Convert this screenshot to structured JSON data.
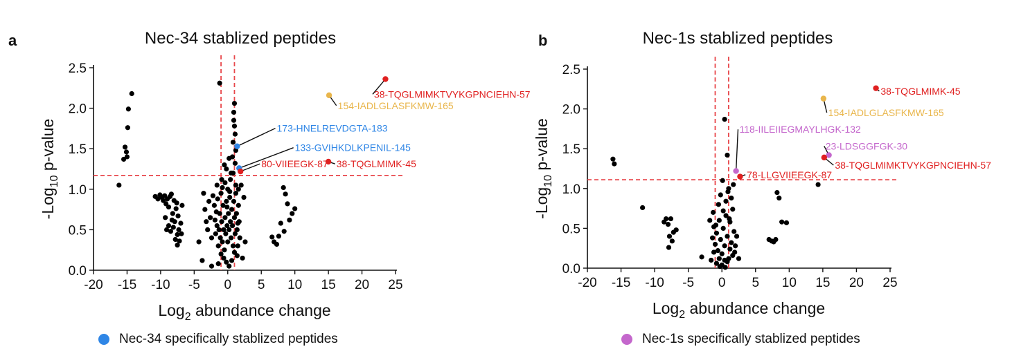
{
  "colors": {
    "point": "#000000",
    "threshold": "#e8474b",
    "red": "#e02020",
    "orange": "#e9b64c",
    "blue": "#2f86e6",
    "purple": "#c467cc"
  },
  "panels": [
    {
      "letter": "a",
      "legend_label": "Nec-34 specifically stablized peptides",
      "legend_color": "#2f86e6"
    },
    {
      "letter": "b",
      "legend_label": "Nec-1s specifically stablized peptides",
      "legend_color": "#c467cc"
    }
  ],
  "chart_data": [
    {
      "type": "scatter",
      "title": "Nec-34 stablized peptides",
      "xlabel": "Log2 abundance change",
      "ylabel": "-Log10 p-value",
      "xlim": [
        -20,
        25
      ],
      "ylim": [
        0,
        2.5
      ],
      "xticks": [
        "-20",
        "-15",
        "-10",
        "-5",
        "0",
        "5",
        "10",
        "15",
        "20",
        "25"
      ],
      "yticks": [
        "0.0",
        "0.5",
        "1.0",
        "1.5",
        "2.0",
        "2.5"
      ],
      "thresholds": {
        "x": [
          -1,
          1
        ],
        "y": 1.17
      },
      "points": [
        [
          -16.2,
          1.05
        ],
        [
          -15.5,
          1.37
        ],
        [
          -15.3,
          1.52
        ],
        [
          -15.1,
          1.46
        ],
        [
          -15.0,
          1.4
        ],
        [
          -14.8,
          1.99
        ],
        [
          -14.9,
          1.76
        ],
        [
          -14.3,
          2.18
        ],
        [
          -10.8,
          0.91
        ],
        [
          -10.4,
          0.88
        ],
        [
          -10.1,
          0.93
        ],
        [
          -9.8,
          0.9
        ],
        [
          -9.6,
          0.86
        ],
        [
          -9.4,
          0.92
        ],
        [
          -9.2,
          0.82
        ],
        [
          -9.0,
          0.88
        ],
        [
          -8.8,
          0.78
        ],
        [
          -8.6,
          0.91
        ],
        [
          -8.4,
          0.94
        ],
        [
          -8.2,
          0.7
        ],
        [
          -8.0,
          0.86
        ],
        [
          -7.9,
          0.6
        ],
        [
          -7.7,
          0.76
        ],
        [
          -7.6,
          0.83
        ],
        [
          -7.5,
          0.44
        ],
        [
          -7.4,
          0.67
        ],
        [
          -7.3,
          0.5
        ],
        [
          -7.2,
          0.36
        ],
        [
          -7.5,
          0.31
        ],
        [
          -7.0,
          0.58
        ],
        [
          -6.9,
          0.45
        ],
        [
          -6.8,
          0.8
        ],
        [
          -9.3,
          0.65
        ],
        [
          -9.1,
          0.5
        ],
        [
          -8.8,
          0.55
        ],
        [
          -8.5,
          0.48
        ],
        [
          -8.3,
          0.62
        ],
        [
          -8.1,
          0.53
        ],
        [
          -7.8,
          0.38
        ],
        [
          -4.3,
          0.35
        ],
        [
          -3.6,
          0.95
        ],
        [
          -3.4,
          0.75
        ],
        [
          -3.2,
          0.6
        ],
        [
          -3.0,
          0.5
        ],
        [
          -2.8,
          0.85
        ],
        [
          -2.6,
          0.65
        ],
        [
          -2.4,
          0.4
        ],
        [
          -2.2,
          0.92
        ],
        [
          -2.0,
          0.8
        ],
        [
          -1.9,
          0.62
        ],
        [
          -1.8,
          0.45
        ],
        [
          -1.7,
          0.72
        ],
        [
          -1.6,
          0.55
        ],
        [
          -1.5,
          0.88
        ],
        [
          -1.4,
          0.3
        ],
        [
          -1.3,
          0.5
        ],
        [
          -1.2,
          0.7
        ],
        [
          -1.1,
          0.4
        ],
        [
          -1.0,
          0.95
        ],
        [
          -0.9,
          0.6
        ],
        [
          -0.8,
          0.35
        ],
        [
          -0.7,
          0.8
        ],
        [
          -0.6,
          0.5
        ],
        [
          -0.5,
          0.25
        ],
        [
          -0.4,
          0.65
        ],
        [
          -0.3,
          0.45
        ],
        [
          -0.2,
          0.85
        ],
        [
          -0.1,
          0.55
        ],
        [
          0.0,
          0.35
        ],
        [
          0.1,
          0.7
        ],
        [
          0.2,
          0.5
        ],
        [
          0.3,
          0.9
        ],
        [
          0.4,
          0.6
        ],
        [
          0.5,
          0.4
        ],
        [
          0.6,
          0.75
        ],
        [
          0.7,
          0.55
        ],
        [
          0.8,
          0.3
        ],
        [
          0.9,
          0.85
        ],
        [
          1.0,
          0.65
        ],
        [
          1.1,
          0.45
        ],
        [
          1.2,
          0.95
        ],
        [
          1.3,
          0.7
        ],
        [
          1.4,
          0.5
        ],
        [
          1.5,
          0.3
        ],
        [
          1.6,
          0.8
        ],
        [
          1.7,
          0.6
        ],
        [
          1.8,
          0.4
        ],
        [
          -1.0,
          0.2
        ],
        [
          -0.6,
          0.15
        ],
        [
          -0.2,
          0.1
        ],
        [
          0.2,
          0.05
        ],
        [
          0.6,
          0.12
        ],
        [
          1.0,
          0.22
        ],
        [
          1.4,
          0.18
        ],
        [
          -1.4,
          0.08
        ],
        [
          -3.8,
          0.12
        ],
        [
          -2.4,
          0.05
        ],
        [
          2.2,
          0.15
        ],
        [
          2.6,
          0.35
        ],
        [
          2.4,
          0.9
        ],
        [
          2.0,
          1.05
        ],
        [
          -0.8,
          1.02
        ],
        [
          -0.4,
          1.08
        ],
        [
          0.0,
          1.0
        ],
        [
          0.4,
          1.12
        ],
        [
          0.8,
          1.2
        ],
        [
          1.2,
          1.05
        ],
        [
          1.6,
          1.0
        ],
        [
          -1.6,
          1.05
        ],
        [
          -0.5,
          1.3
        ],
        [
          -0.2,
          1.25
        ],
        [
          0.2,
          1.38
        ],
        [
          0.5,
          1.2
        ],
        [
          -1.2,
          2.31
        ],
        [
          0.9,
          1.85
        ],
        [
          1.0,
          1.78
        ],
        [
          1.1,
          1.68
        ],
        [
          1.0,
          2.06
        ],
        [
          0.9,
          1.95
        ],
        [
          0.8,
          1.58
        ],
        [
          1.2,
          1.48
        ],
        [
          0.7,
          1.4
        ],
        [
          1.1,
          1.32
        ],
        [
          -0.9,
          1.12
        ],
        [
          0.3,
          0.97
        ],
        [
          -0.1,
          0.78
        ],
        [
          1.5,
          0.58
        ],
        [
          6.6,
          0.41
        ],
        [
          6.9,
          0.35
        ],
        [
          7.3,
          0.32
        ],
        [
          7.6,
          0.42
        ],
        [
          7.9,
          0.58
        ],
        [
          8.3,
          1.02
        ],
        [
          8.6,
          0.94
        ],
        [
          8.9,
          0.82
        ],
        [
          9.2,
          0.62
        ],
        [
          9.6,
          0.7
        ],
        [
          10.0,
          0.76
        ],
        [
          8.4,
          0.48
        ]
      ],
      "highlights": [
        {
          "x": 23.5,
          "y": 2.36,
          "color": "red",
          "label": "38-TQGLMIMKTVYKGPNCIEHN-57",
          "lx": 21.8,
          "ly": 2.13,
          "anchor": "start"
        },
        {
          "x": 15.1,
          "y": 2.16,
          "color": "orange",
          "label": "154-IADLGLASFKMW-165",
          "lx": 16.4,
          "ly": 1.99,
          "anchor": "start"
        },
        {
          "x": 1.4,
          "y": 1.53,
          "color": "blue",
          "label": "173-HNELREVDGTA-183",
          "lx": 7.3,
          "ly": 1.71,
          "anchor": "start"
        },
        {
          "x": 1.7,
          "y": 1.26,
          "color": "blue",
          "label": "133-GVIHKDLKPENIL-145",
          "lx": 10.0,
          "ly": 1.47,
          "anchor": "start"
        },
        {
          "x": 1.9,
          "y": 1.22,
          "color": "red",
          "label": "80-VIIEEGK-87",
          "lx": 5.0,
          "ly": 1.27,
          "anchor": "start"
        },
        {
          "x": 15.0,
          "y": 1.34,
          "color": "red",
          "label": "38-TQGLMIMK-45",
          "lx": 16.2,
          "ly": 1.27,
          "anchor": "start"
        }
      ]
    },
    {
      "type": "scatter",
      "title": "Nec-1s stablized peptides",
      "xlabel": "Log2 abundance change",
      "ylabel": "-Log10 p-value",
      "xlim": [
        -20,
        25
      ],
      "ylim": [
        0,
        2.5
      ],
      "xticks": [
        "-20",
        "-15",
        "-10",
        "-5",
        "0",
        "5",
        "10",
        "15",
        "20",
        "25"
      ],
      "yticks": [
        "0.0",
        "0.5",
        "1.0",
        "1.5",
        "2.0",
        "2.5"
      ],
      "thresholds": {
        "x": [
          -1,
          1
        ],
        "y": 1.11
      },
      "points": [
        [
          -16.2,
          1.37
        ],
        [
          -16.0,
          1.31
        ],
        [
          -11.8,
          0.76
        ],
        [
          -8.6,
          0.58
        ],
        [
          -8.3,
          0.62
        ],
        [
          -8.0,
          0.55
        ],
        [
          -7.8,
          0.4
        ],
        [
          -7.6,
          0.62
        ],
        [
          -7.4,
          0.34
        ],
        [
          -7.2,
          0.45
        ],
        [
          -6.8,
          0.48
        ],
        [
          -7.9,
          0.26
        ],
        [
          -3.0,
          0.14
        ],
        [
          -1.4,
          0.38
        ],
        [
          -1.2,
          0.52
        ],
        [
          -1.0,
          0.3
        ],
        [
          -0.8,
          0.44
        ],
        [
          -0.6,
          0.22
        ],
        [
          -0.4,
          0.6
        ],
        [
          -0.2,
          0.36
        ],
        [
          0.0,
          0.18
        ],
        [
          0.2,
          0.5
        ],
        [
          0.4,
          0.28
        ],
        [
          0.6,
          0.66
        ],
        [
          0.8,
          0.4
        ],
        [
          1.0,
          0.12
        ],
        [
          1.2,
          0.58
        ],
        [
          1.4,
          0.32
        ],
        [
          1.6,
          0.74
        ],
        [
          1.8,
          0.46
        ],
        [
          -1.6,
          0.1
        ],
        [
          -0.8,
          0.06
        ],
        [
          0.0,
          0.04
        ],
        [
          0.8,
          0.08
        ],
        [
          1.6,
          0.16
        ],
        [
          2.0,
          0.28
        ],
        [
          -1.2,
          0.2
        ],
        [
          -0.4,
          0.12
        ],
        [
          0.4,
          0.1
        ],
        [
          1.2,
          0.24
        ],
        [
          0.2,
          0.72
        ],
        [
          0.6,
          0.84
        ],
        [
          0.9,
          0.96
        ],
        [
          0.4,
          1.87
        ],
        [
          0.8,
          1.42
        ],
        [
          1.0,
          1.0
        ],
        [
          1.4,
          0.88
        ],
        [
          1.7,
          1.05
        ],
        [
          -0.2,
          0.92
        ],
        [
          0.1,
          1.1
        ],
        [
          1.1,
          0.62
        ],
        [
          -0.9,
          0.54
        ],
        [
          -0.5,
          0.8
        ],
        [
          -1.3,
          0.7
        ],
        [
          2.2,
          0.4
        ],
        [
          2.5,
          0.12
        ],
        [
          -0.3,
          0.02
        ],
        [
          0.5,
          0.01
        ],
        [
          -1.8,
          0.6
        ],
        [
          1.9,
          0.2
        ],
        [
          7.0,
          0.36
        ],
        [
          7.4,
          0.34
        ],
        [
          7.7,
          0.33
        ],
        [
          8.0,
          0.36
        ],
        [
          8.2,
          0.95
        ],
        [
          8.5,
          0.88
        ],
        [
          8.9,
          0.58
        ],
        [
          9.6,
          0.57
        ],
        [
          14.3,
          1.05
        ]
      ],
      "highlights": [
        {
          "x": 22.9,
          "y": 2.26,
          "color": "red",
          "label": "38-TQGLMIMK-45",
          "lx": 23.6,
          "ly": 2.18,
          "anchor": "start"
        },
        {
          "x": 15.1,
          "y": 2.13,
          "color": "orange",
          "label": "154-IADLGLASFKMW-165",
          "lx": 15.8,
          "ly": 1.91,
          "anchor": "start"
        },
        {
          "x": 2.1,
          "y": 1.22,
          "color": "purple",
          "label": "118-IILEIIEGMAYLHGK-132",
          "lx": 2.6,
          "ly": 1.7,
          "anchor": "start"
        },
        {
          "x": 15.9,
          "y": 1.42,
          "color": "purple",
          "label": "23-LDSGGFGK-30",
          "lx": 15.4,
          "ly": 1.49,
          "anchor": "start"
        },
        {
          "x": 15.2,
          "y": 1.39,
          "color": "red",
          "label": "38-TQGLMIMKTVYKGPNCIEHN-57",
          "lx": 16.8,
          "ly": 1.25,
          "anchor": "start"
        },
        {
          "x": 2.7,
          "y": 1.15,
          "color": "red",
          "label": "78-LLGVIIEEGK-87",
          "lx": 3.7,
          "ly": 1.13,
          "anchor": "start"
        }
      ]
    }
  ]
}
